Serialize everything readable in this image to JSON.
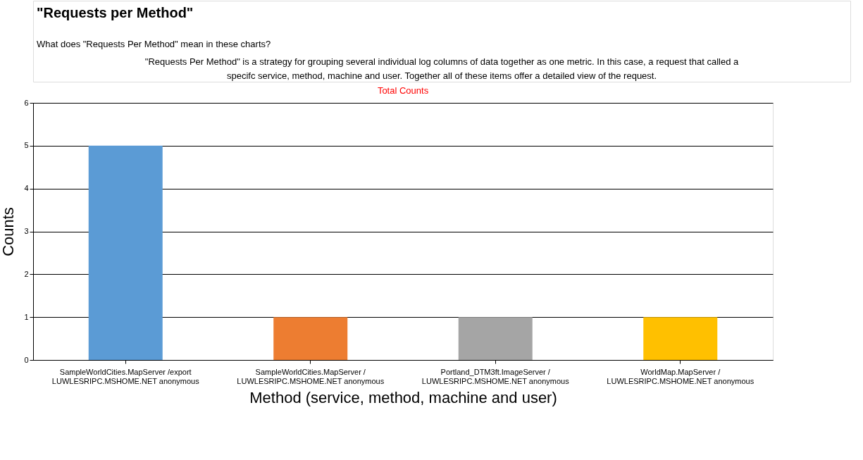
{
  "chart_data": {
    "type": "bar",
    "title": "Total Counts",
    "annotations": [
      "\"Requests per Method\"",
      "What does \"Requests Per Method\" mean in these charts?",
      "\"Requests Per Method\" is a strategy for grouping several individual log columns of data together as one metric. In this case, a request that called a specifc service, method, machine and user. Together all of these items offer a detailed view of the request."
    ],
    "xlabel": "Method (service, method, machine and user)",
    "ylabel": "Counts",
    "categories": [
      "SampleWorldCities.MapServer /export\nLUWLESRIPC.MSHOME.NET  anonymous",
      "SampleWorldCities.MapServer /\nLUWLESRIPC.MSHOME.NET  anonymous",
      "Portland_DTM3ft.ImageServer /\nLUWLESRIPC.MSHOME.NET  anonymous",
      "WorldMap.MapServer /\nLUWLESRIPC.MSHOME.NET  anonymous"
    ],
    "values": [
      5,
      1,
      1,
      1
    ],
    "colors": [
      "#5b9bd5",
      "#ed7d31",
      "#a5a5a5",
      "#ffc000"
    ],
    "ylim": [
      0,
      6
    ],
    "yticks": [
      0,
      1,
      2,
      3,
      4,
      5,
      6
    ],
    "grid": "y",
    "legend": false
  }
}
